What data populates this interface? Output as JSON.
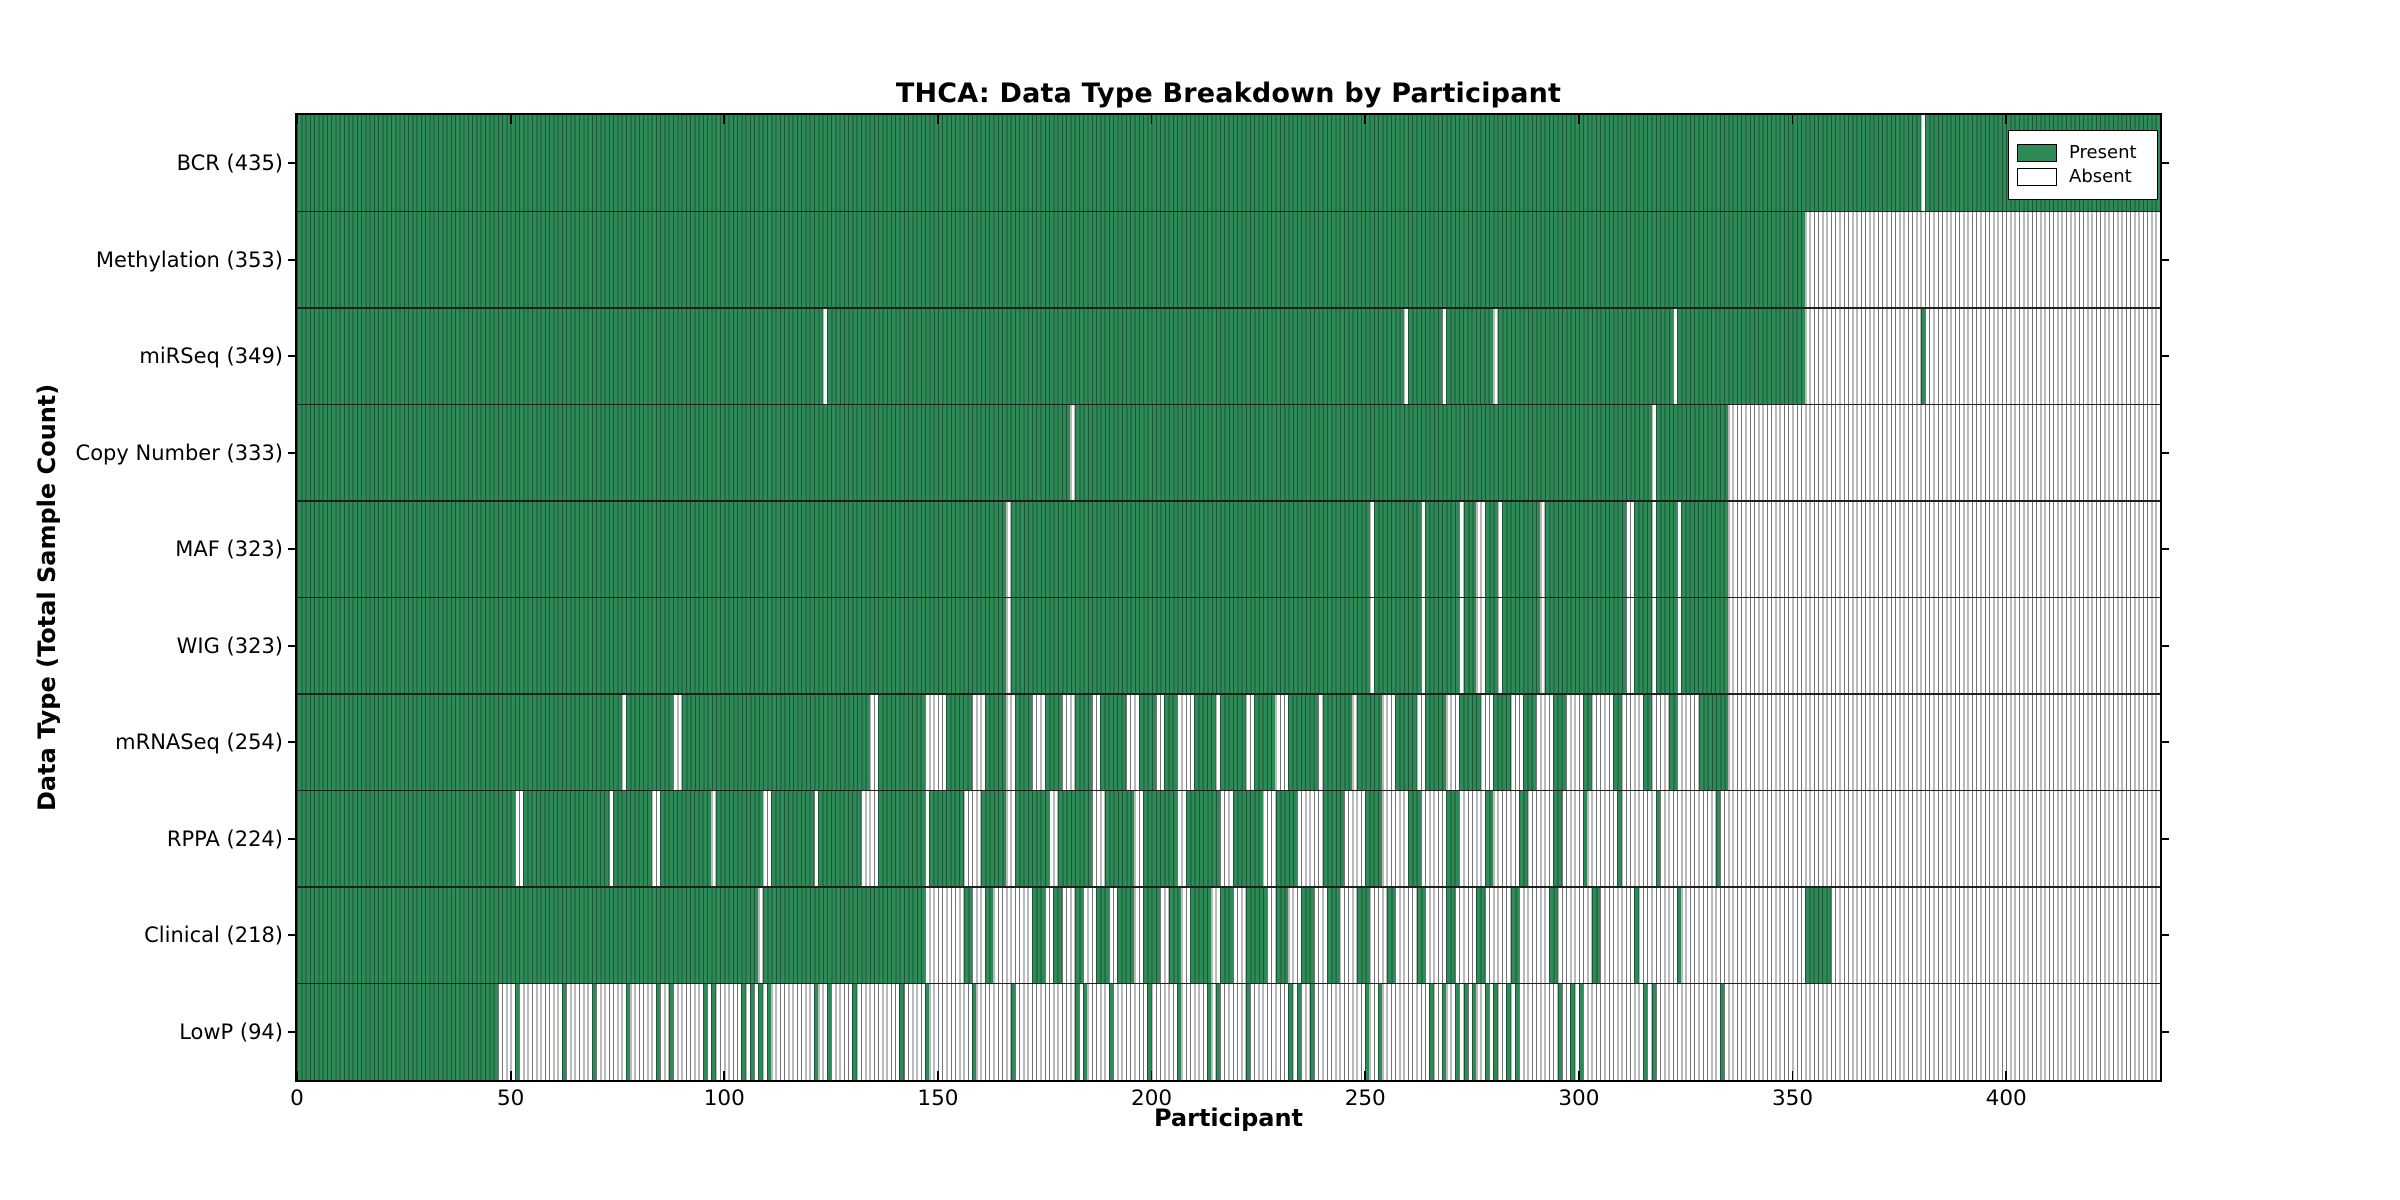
{
  "title": "THCA: Data Type Breakdown by Participant",
  "x_axis_label": "Participant",
  "y_axis_label": "Data Type (Total Sample Count)",
  "legend": {
    "present_label": "Present",
    "absent_label": "Absent"
  },
  "colors": {
    "present": "#2e8b57",
    "present_gridline": "#1b5737",
    "absent": "#ffffff",
    "absent_gridline": "#757575",
    "spine": "#000000",
    "row_separator": "#1f1f1f"
  },
  "chart_data": {
    "type": "heatmap",
    "x_max": 436,
    "x_ticks": [
      0,
      50,
      100,
      150,
      200,
      250,
      300,
      350,
      400
    ],
    "legend_entries": [
      "Present",
      "Absent"
    ],
    "legend_position": "upper right",
    "rows": [
      {
        "label": "BCR (435)",
        "key": "bcr",
        "count": 435,
        "present_runs": [
          [
            0,
            380
          ],
          [
            381,
            436
          ]
        ]
      },
      {
        "label": "Methylation (353)",
        "key": "methylation",
        "count": 353,
        "present_runs": [
          [
            0,
            353
          ]
        ]
      },
      {
        "label": "miRSeq (349)",
        "key": "mirseq",
        "count": 349,
        "present_runs": [
          [
            0,
            123
          ],
          [
            124,
            259
          ],
          [
            260,
            268
          ],
          [
            269,
            280
          ],
          [
            281,
            322
          ],
          [
            323,
            353
          ],
          [
            380,
            381
          ]
        ]
      },
      {
        "label": "Copy Number (333)",
        "key": "copy-number",
        "count": 333,
        "present_runs": [
          [
            0,
            181
          ],
          [
            182,
            317
          ],
          [
            318,
            335
          ]
        ]
      },
      {
        "label": "MAF (323)",
        "key": "maf",
        "count": 323,
        "present_runs": [
          [
            0,
            166
          ],
          [
            167,
            251
          ],
          [
            252,
            263
          ],
          [
            264,
            272
          ],
          [
            273,
            276
          ],
          [
            278,
            281
          ],
          [
            282,
            291
          ],
          [
            292,
            311
          ],
          [
            313,
            317
          ],
          [
            318,
            323
          ],
          [
            324,
            335
          ]
        ]
      },
      {
        "label": "WIG (323)",
        "key": "wig",
        "count": 323,
        "present_runs": [
          [
            0,
            166
          ],
          [
            167,
            251
          ],
          [
            252,
            263
          ],
          [
            264,
            272
          ],
          [
            273,
            276
          ],
          [
            278,
            281
          ],
          [
            282,
            291
          ],
          [
            292,
            311
          ],
          [
            313,
            317
          ],
          [
            318,
            323
          ],
          [
            324,
            335
          ]
        ]
      },
      {
        "label": "mRNASeq (254)",
        "key": "mrnaseq",
        "count": 254,
        "present_runs": [
          [
            0,
            76
          ],
          [
            77,
            88
          ],
          [
            90,
            134
          ],
          [
            136,
            147
          ],
          [
            152,
            158
          ],
          [
            161,
            166
          ],
          [
            168,
            172
          ],
          [
            175,
            179
          ],
          [
            182,
            186
          ],
          [
            188,
            194
          ],
          [
            197,
            201
          ],
          [
            203,
            206
          ],
          [
            210,
            215
          ],
          [
            216,
            222
          ],
          [
            224,
            229
          ],
          [
            232,
            239
          ],
          [
            240,
            247
          ],
          [
            248,
            254
          ],
          [
            257,
            262
          ],
          [
            264,
            269
          ],
          [
            272,
            277
          ],
          [
            280,
            284
          ],
          [
            287,
            290
          ],
          [
            294,
            297
          ],
          [
            301,
            303
          ],
          [
            308,
            310
          ],
          [
            315,
            317
          ],
          [
            321,
            323
          ],
          [
            328,
            335
          ]
        ]
      },
      {
        "label": "RPPA (224)",
        "key": "rppa",
        "count": 224,
        "present_runs": [
          [
            0,
            51
          ],
          [
            53,
            73
          ],
          [
            74,
            83
          ],
          [
            85,
            97
          ],
          [
            98,
            109
          ],
          [
            111,
            121
          ],
          [
            122,
            132
          ],
          [
            136,
            147
          ],
          [
            148,
            156
          ],
          [
            160,
            166
          ],
          [
            168,
            176
          ],
          [
            178,
            186
          ],
          [
            189,
            196
          ],
          [
            198,
            206
          ],
          [
            208,
            216
          ],
          [
            219,
            226
          ],
          [
            229,
            234
          ],
          [
            240,
            245
          ],
          [
            250,
            254
          ],
          [
            260,
            263
          ],
          [
            269,
            272
          ],
          [
            278,
            280
          ],
          [
            286,
            288
          ],
          [
            294,
            296
          ],
          [
            301,
            302
          ],
          [
            309,
            310
          ],
          [
            318,
            319
          ],
          [
            332,
            333
          ]
        ]
      },
      {
        "label": "Clinical (218)",
        "key": "clinical",
        "count": 218,
        "present_runs": [
          [
            0,
            108
          ],
          [
            109,
            147
          ],
          [
            156,
            158
          ],
          [
            161,
            163
          ],
          [
            172,
            175
          ],
          [
            177,
            179
          ],
          [
            182,
            184
          ],
          [
            187,
            190
          ],
          [
            192,
            196
          ],
          [
            198,
            202
          ],
          [
            204,
            207
          ],
          [
            209,
            214
          ],
          [
            216,
            219
          ],
          [
            222,
            227
          ],
          [
            229,
            232
          ],
          [
            235,
            238
          ],
          [
            241,
            244
          ],
          [
            248,
            251
          ],
          [
            255,
            257
          ],
          [
            262,
            264
          ],
          [
            269,
            271
          ],
          [
            276,
            278
          ],
          [
            284,
            286
          ],
          [
            293,
            295
          ],
          [
            303,
            305
          ],
          [
            313,
            314
          ],
          [
            323,
            324
          ],
          [
            353,
            359
          ]
        ]
      },
      {
        "label": "LowP (94)",
        "key": "lowp",
        "count": 94,
        "present_runs": [
          [
            0,
            47
          ],
          [
            51,
            52
          ],
          [
            62,
            63
          ],
          [
            69,
            70
          ],
          [
            77,
            78
          ],
          [
            84,
            85
          ],
          [
            87,
            88
          ],
          [
            95,
            96
          ],
          [
            97,
            98
          ],
          [
            104,
            105
          ],
          [
            106,
            107
          ],
          [
            108,
            109
          ],
          [
            110,
            111
          ],
          [
            121,
            122
          ],
          [
            124,
            125
          ],
          [
            130,
            131
          ],
          [
            141,
            142
          ],
          [
            147,
            148
          ],
          [
            158,
            159
          ],
          [
            167,
            168
          ],
          [
            182,
            183
          ],
          [
            184,
            185
          ],
          [
            190,
            191
          ],
          [
            199,
            200
          ],
          [
            206,
            207
          ],
          [
            213,
            214
          ],
          [
            215,
            216
          ],
          [
            222,
            223
          ],
          [
            232,
            233
          ],
          [
            234,
            235
          ],
          [
            237,
            238
          ],
          [
            250,
            251
          ],
          [
            253,
            254
          ],
          [
            265,
            266
          ],
          [
            268,
            269
          ],
          [
            271,
            272
          ],
          [
            273,
            274
          ],
          [
            275,
            276
          ],
          [
            278,
            279
          ],
          [
            280,
            281
          ],
          [
            283,
            284
          ],
          [
            285,
            286
          ],
          [
            295,
            296
          ],
          [
            298,
            299
          ],
          [
            300,
            301
          ],
          [
            315,
            316
          ],
          [
            317,
            318
          ],
          [
            333,
            334
          ]
        ]
      }
    ]
  }
}
